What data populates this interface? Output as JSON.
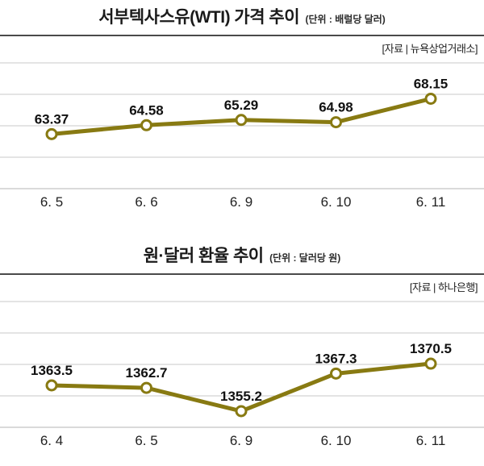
{
  "page": {
    "background": "#ffffff"
  },
  "colors": {
    "line": "#887a12",
    "marker_fill": "#ffffff",
    "grid": "#c9c9c9",
    "axis": "#b5b5b5",
    "value_label": "#111111",
    "x_label": "#222222"
  },
  "chart_data": [
    {
      "type": "line",
      "title": "서부텍사스유(WTI) 가격 추이",
      "unit": "(단위 : 배럴당 달러)",
      "source": "[자료 | 뉴욕상업거래소]",
      "categories": [
        "6. 5",
        "6. 6",
        "6. 9",
        "6. 10",
        "6. 11"
      ],
      "values": [
        63.37,
        64.58,
        65.29,
        64.98,
        68.15
      ],
      "value_labels": [
        "63.37",
        "64.58",
        "65.29",
        "64.98",
        "68.15"
      ],
      "xlabel": "",
      "ylabel": "",
      "ylim": [
        56,
        73
      ],
      "grid": true,
      "legend_position": "none",
      "line_color": "#887a12"
    },
    {
      "type": "line",
      "title": "원·달러 환율 추이",
      "unit": "(단위 : 달러당 원)",
      "source": "[자료 | 하나은행]",
      "categories": [
        "6. 4",
        "6. 5",
        "6. 9",
        "6. 10",
        "6. 11"
      ],
      "values": [
        1363.5,
        1362.7,
        1355.2,
        1367.3,
        1370.5
      ],
      "value_labels": [
        "1363.5",
        "1362.7",
        "1355.2",
        "1367.3",
        "1370.5"
      ],
      "xlabel": "",
      "ylabel": "",
      "ylim": [
        1350,
        1390.5
      ],
      "grid": true,
      "legend_position": "none",
      "line_color": "#887a12"
    }
  ]
}
